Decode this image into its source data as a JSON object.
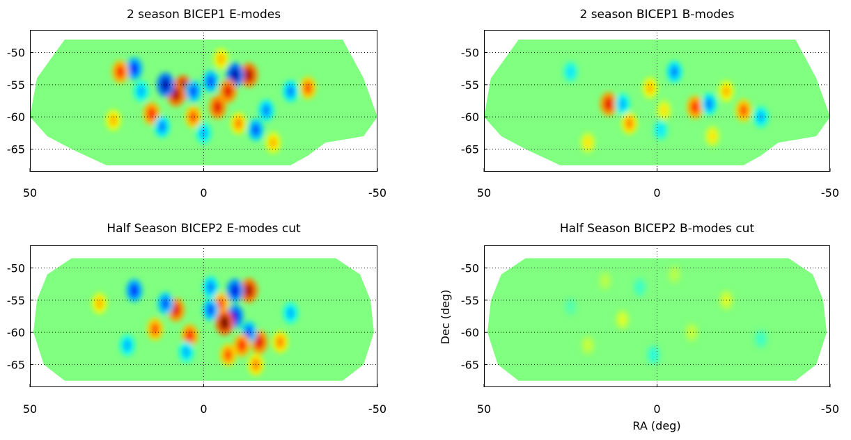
{
  "chart_data": [
    {
      "type": "heatmap",
      "title": "2 season BICEP1 E-modes",
      "xlabel": "",
      "ylabel": "",
      "xlim": [
        50,
        -50
      ],
      "ylim": [
        -68.5,
        -46.5
      ],
      "x_ticks": [
        "50",
        "0",
        "-50"
      ],
      "y_ticks": [
        "-50",
        "-55",
        "-60",
        "-65"
      ],
      "grid": true,
      "colormap": "jet",
      "spots": [
        {
          "ra": -13,
          "dec": -53.5,
          "v": 0.9
        },
        {
          "ra": -9,
          "dec": -53.5,
          "v": -0.9
        },
        {
          "ra": -7,
          "dec": -56.0,
          "v": 0.8
        },
        {
          "ra": -4,
          "dec": -58.5,
          "v": 0.8
        },
        {
          "ra": -2,
          "dec": -54.5,
          "v": -0.6
        },
        {
          "ra": 6,
          "dec": -55.5,
          "v": 1.0
        },
        {
          "ra": 8,
          "dec": -56.5,
          "v": 0.9
        },
        {
          "ra": 11,
          "dec": -55.0,
          "v": -0.9
        },
        {
          "ra": 3,
          "dec": -56.0,
          "v": -0.6
        },
        {
          "ra": 20,
          "dec": -52.5,
          "v": -0.7
        },
        {
          "ra": 24,
          "dec": -53.0,
          "v": 0.7
        },
        {
          "ra": 15,
          "dec": -59.5,
          "v": 0.7
        },
        {
          "ra": -30,
          "dec": -55.5,
          "v": 0.6
        },
        {
          "ra": -15,
          "dec": -62.0,
          "v": -0.6
        },
        {
          "ra": -10,
          "dec": -61.0,
          "v": 0.5
        },
        {
          "ra": 12,
          "dec": -61.5,
          "v": -0.5
        },
        {
          "ra": -18,
          "dec": -59.0,
          "v": -0.5
        },
        {
          "ra": 3,
          "dec": -60.0,
          "v": 0.6
        },
        {
          "ra": -25,
          "dec": -56.0,
          "v": -0.5
        },
        {
          "ra": 26,
          "dec": -60.5,
          "v": 0.4
        },
        {
          "ra": -5,
          "dec": -51.0,
          "v": 0.4
        },
        {
          "ra": 0,
          "dec": -62.5,
          "v": -0.4
        },
        {
          "ra": 18,
          "dec": -56.0,
          "v": -0.4
        },
        {
          "ra": -20,
          "dec": -64.0,
          "v": 0.4
        }
      ]
    },
    {
      "type": "heatmap",
      "title": "2 season BICEP1 B-modes",
      "xlabel": "",
      "ylabel": "",
      "xlim": [
        50,
        -50
      ],
      "ylim": [
        -68.5,
        -46.5
      ],
      "x_ticks": [
        "50",
        "0",
        "-50"
      ],
      "y_ticks": [
        "-50",
        "-55",
        "-60",
        "-65"
      ],
      "grid": true,
      "colormap": "jet",
      "spots": [
        {
          "ra": -25,
          "dec": -59.0,
          "v": 0.6
        },
        {
          "ra": -11,
          "dec": -58.5,
          "v": 0.7
        },
        {
          "ra": -15,
          "dec": -58.0,
          "v": -0.5
        },
        {
          "ra": 14,
          "dec": -58.0,
          "v": 0.8
        },
        {
          "ra": 8,
          "dec": -61.0,
          "v": 0.5
        },
        {
          "ra": -20,
          "dec": -56.0,
          "v": 0.4
        },
        {
          "ra": 2,
          "dec": -55.5,
          "v": 0.4
        },
        {
          "ra": -5,
          "dec": -53.0,
          "v": -0.5
        },
        {
          "ra": 10,
          "dec": -58.0,
          "v": -0.4
        },
        {
          "ra": -30,
          "dec": -60.0,
          "v": -0.4
        },
        {
          "ra": -1,
          "dec": -62.0,
          "v": -0.3
        },
        {
          "ra": 20,
          "dec": -64.0,
          "v": 0.3
        },
        {
          "ra": -16,
          "dec": -63.0,
          "v": 0.3
        },
        {
          "ra": 25,
          "dec": -53.0,
          "v": -0.3
        },
        {
          "ra": -2,
          "dec": -59.0,
          "v": 0.3
        }
      ]
    },
    {
      "type": "heatmap",
      "title": "Half Season BICEP2 E-modes cut",
      "xlabel": "",
      "ylabel": "",
      "xlim": [
        50,
        -50
      ],
      "ylim": [
        -68.5,
        -46.5
      ],
      "x_ticks": [
        "50",
        "0",
        "-50"
      ],
      "y_ticks": [
        "-50",
        "-55",
        "-60",
        "-65"
      ],
      "grid": true,
      "colormap": "jet",
      "spots": [
        {
          "ra": -13,
          "dec": -53.5,
          "v": 0.9
        },
        {
          "ra": -9,
          "dec": -53.5,
          "v": -0.8
        },
        {
          "ra": -5,
          "dec": -55.5,
          "v": 0.6
        },
        {
          "ra": -9,
          "dec": -57.5,
          "v": -0.8
        },
        {
          "ra": -6,
          "dec": -58.5,
          "v": 1.0
        },
        {
          "ra": -2,
          "dec": -56.5,
          "v": -0.6
        },
        {
          "ra": -2,
          "dec": -53.0,
          "v": -0.5
        },
        {
          "ra": 8,
          "dec": -56.5,
          "v": 0.8
        },
        {
          "ra": 11,
          "dec": -55.5,
          "v": -0.6
        },
        {
          "ra": 20,
          "dec": -53.5,
          "v": -0.7
        },
        {
          "ra": 14,
          "dec": -59.5,
          "v": 0.6
        },
        {
          "ra": 4,
          "dec": -60.5,
          "v": 0.7
        },
        {
          "ra": -16,
          "dec": -61.5,
          "v": 0.8
        },
        {
          "ra": -13,
          "dec": -60.0,
          "v": -0.6
        },
        {
          "ra": -11,
          "dec": -62.0,
          "v": 0.7
        },
        {
          "ra": -7,
          "dec": -63.5,
          "v": 0.6
        },
        {
          "ra": -15,
          "dec": -65.0,
          "v": 0.5
        },
        {
          "ra": -22,
          "dec": -61.5,
          "v": 0.5
        },
        {
          "ra": 22,
          "dec": -62.0,
          "v": -0.4
        },
        {
          "ra": 30,
          "dec": -55.5,
          "v": 0.4
        },
        {
          "ra": -25,
          "dec": -57.0,
          "v": -0.4
        },
        {
          "ra": 5,
          "dec": -63.0,
          "v": -0.4
        }
      ]
    },
    {
      "type": "heatmap",
      "title": "Half Season BICEP2 B-modes cut",
      "xlabel": "RA (deg)",
      "ylabel": "Dec (deg)",
      "xlim": [
        50,
        -50
      ],
      "ylim": [
        -68.5,
        -46.5
      ],
      "x_ticks": [
        "50",
        "0",
        "-50"
      ],
      "y_ticks": [
        "-50",
        "-55",
        "-60",
        "-65"
      ],
      "grid": true,
      "colormap": "jet",
      "spots": [
        {
          "ra": -20,
          "dec": -55.0,
          "v": 0.2
        },
        {
          "ra": 10,
          "dec": -58.0,
          "v": 0.2
        },
        {
          "ra": 5,
          "dec": -53.0,
          "v": -0.15
        },
        {
          "ra": -10,
          "dec": -60.0,
          "v": 0.15
        },
        {
          "ra": 1,
          "dec": -63.5,
          "v": -0.2
        },
        {
          "ra": 20,
          "dec": -62.0,
          "v": 0.15
        },
        {
          "ra": -30,
          "dec": -61.0,
          "v": -0.15
        },
        {
          "ra": 25,
          "dec": -56.0,
          "v": -0.1
        },
        {
          "ra": -5,
          "dec": -51.0,
          "v": 0.12
        },
        {
          "ra": 15,
          "dec": -52.0,
          "v": 0.12
        }
      ]
    }
  ]
}
